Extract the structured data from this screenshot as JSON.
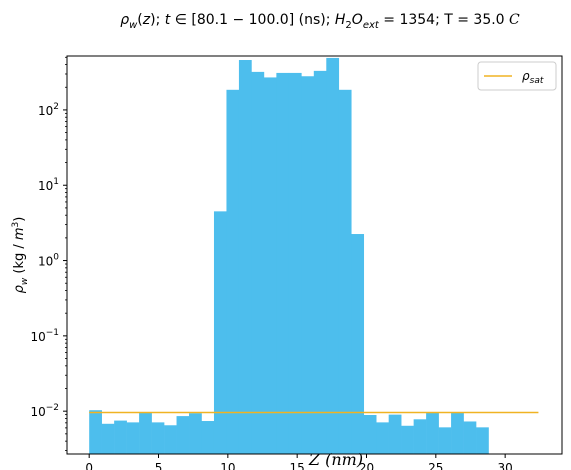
{
  "chart_data": {
    "type": "bar",
    "title": "ρ_w(z); t∈[80.1−100.0] (ns); H₂O_ext = 1354; T = 35.0 C",
    "xlabel": "Z (nm)",
    "ylabel": "ρ_w (kg / m³)",
    "xlim": [
      -1.6,
      34.1
    ],
    "ylim": [
      0.0027,
      520
    ],
    "yscale": "log",
    "x_ticks": [
      0,
      5,
      10,
      15,
      20,
      25,
      30
    ],
    "y_ticks": [
      0.01,
      0.1,
      1,
      10,
      100
    ],
    "y_tick_labels": [
      {
        "base": "10",
        "exp": "−2"
      },
      {
        "base": "10",
        "exp": "−1"
      },
      {
        "base": "10",
        "exp": "0"
      },
      {
        "base": "10",
        "exp": "1"
      },
      {
        "base": "10",
        "exp": "2"
      }
    ],
    "bin_width": 0.9,
    "bin_start": 0,
    "values": [
      0.0103,
      0.0068,
      0.0075,
      0.0071,
      0.0096,
      0.0071,
      0.0065,
      0.0086,
      0.0094,
      0.0074,
      4.5,
      185,
      460,
      320,
      270,
      310,
      310,
      280,
      330,
      490,
      185,
      2.25,
      0.0089,
      0.0071,
      0.009,
      0.0064,
      0.0078,
      0.0095,
      0.0061,
      0.0095,
      0.0073,
      0.0061
    ],
    "bar_color": "#4dbeed",
    "series": [
      {
        "name": "ρ_sat",
        "type": "line",
        "x": [
          0,
          32.4
        ],
        "y": [
          0.0096,
          0.0096
        ],
        "color": "#f0b323"
      }
    ],
    "legend": {
      "entries": [
        "ρ_sat"
      ],
      "placement": "top-right"
    },
    "grid": false
  }
}
